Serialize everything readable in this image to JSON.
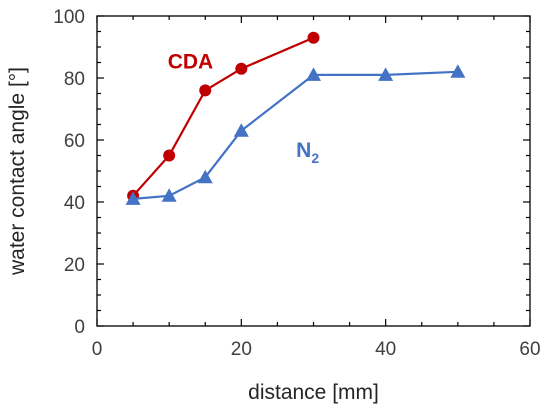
{
  "chart_data": {
    "type": "line",
    "title": "",
    "xlabel": "distance [mm]",
    "ylabel": "water contact angle [°]",
    "xlim": [
      0,
      60
    ],
    "ylim": [
      0,
      100
    ],
    "xticks": [
      0,
      20,
      40,
      60
    ],
    "yticks": [
      0,
      20,
      40,
      60,
      80,
      100
    ],
    "grid": false,
    "series": [
      {
        "name": "CDA",
        "label_text": "CDA",
        "color": "#c00000",
        "marker": "circle",
        "x": [
          5,
          10,
          15,
          20,
          30
        ],
        "y": [
          42,
          55,
          76,
          83,
          93
        ]
      },
      {
        "name": "N2",
        "label_text": "N",
        "label_subscript": "2",
        "color": "#4472c4",
        "marker": "triangle",
        "x": [
          5,
          10,
          15,
          20,
          30,
          40,
          50
        ],
        "y": [
          41,
          42,
          48,
          63,
          81,
          81,
          82
        ]
      }
    ]
  }
}
